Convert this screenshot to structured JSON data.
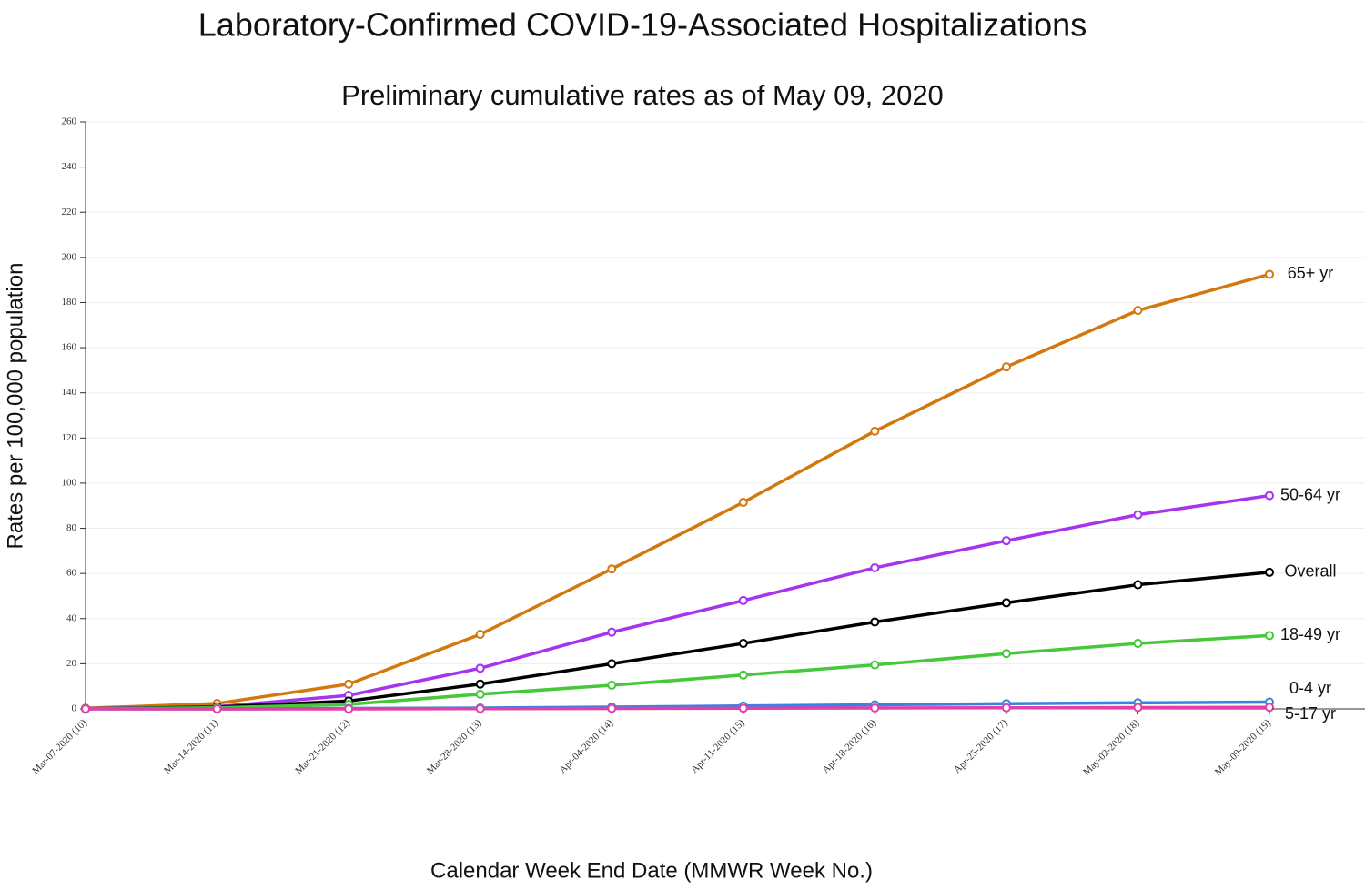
{
  "chart_data": {
    "type": "line",
    "title": "Laboratory-Confirmed COVID-19-Associated Hospitalizations",
    "subtitle": "Preliminary cumulative rates as of May 09, 2020",
    "x_label": "Calendar Week End Date (MMWR Week No.)",
    "y_label": "Rates per 100,000 population",
    "categories": [
      "Mar-07-2020 (10)",
      "Mar-14-2020 (11)",
      "Mar-21-2020 (12)",
      "Mar-28-2020 (13)",
      "Apr-04-2020 (14)",
      "Apr-11-2020 (15)",
      "Apr-18-2020 (16)",
      "Apr-25-2020 (17)",
      "May-02-2020 (18)",
      "May-09-2020 (19)"
    ],
    "series": [
      {
        "name": "65+ yr",
        "color": "#d2780e",
        "values": [
          0.3,
          2.4,
          11,
          33,
          62,
          91.5,
          123,
          151.5,
          176.5,
          192.5
        ]
      },
      {
        "name": "50-64 yr",
        "color": "#a633ee",
        "values": [
          0.2,
          1,
          6,
          18,
          34,
          48,
          62.5,
          74.5,
          86,
          94.5
        ]
      },
      {
        "name": "Overall",
        "color": "#000000",
        "values": [
          0.1,
          0.8,
          3.5,
          11,
          20,
          29,
          38.5,
          47,
          55,
          60.5
        ]
      },
      {
        "name": "18-49 yr",
        "color": "#45c83a",
        "values": [
          0.1,
          0.5,
          2,
          6.5,
          10.5,
          15,
          19.5,
          24.5,
          29,
          32.5
        ]
      },
      {
        "name": "0-4 yr",
        "color": "#3a82e0",
        "values": [
          0,
          0,
          0.2,
          0.4,
          0.8,
          1.3,
          1.8,
          2.3,
          2.7,
          3
        ]
      },
      {
        "name": "5-17 yr",
        "color": "#e040a8",
        "values": [
          0,
          0,
          0,
          0.1,
          0.2,
          0.3,
          0.4,
          0.5,
          0.6,
          0.7
        ]
      }
    ],
    "ylim": [
      0,
      260
    ],
    "yticks": [
      0,
      20,
      40,
      60,
      80,
      100,
      120,
      140,
      160,
      180,
      200,
      220,
      240,
      260
    ],
    "grid": true
  }
}
